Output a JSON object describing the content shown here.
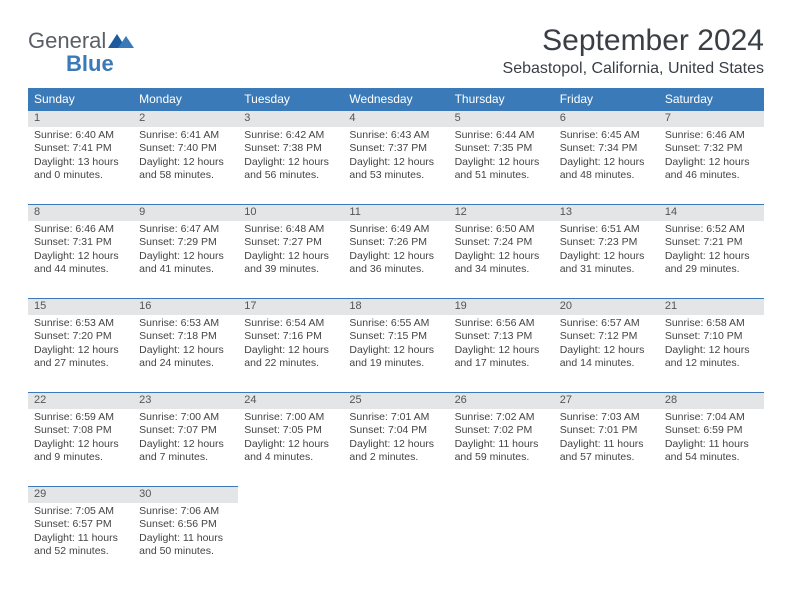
{
  "logo": {
    "text1": "General",
    "text2": "Blue"
  },
  "title": "September 2024",
  "location": "Sebastopol, California, United States",
  "header_bg": "#3b7ab8",
  "daynum_bg": "#e3e5e7",
  "weekdays": [
    "Sunday",
    "Monday",
    "Tuesday",
    "Wednesday",
    "Thursday",
    "Friday",
    "Saturday"
  ],
  "weeks": [
    [
      {
        "n": "1",
        "sr": "Sunrise: 6:40 AM",
        "ss": "Sunset: 7:41 PM",
        "dl": "Daylight: 13 hours and 0 minutes."
      },
      {
        "n": "2",
        "sr": "Sunrise: 6:41 AM",
        "ss": "Sunset: 7:40 PM",
        "dl": "Daylight: 12 hours and 58 minutes."
      },
      {
        "n": "3",
        "sr": "Sunrise: 6:42 AM",
        "ss": "Sunset: 7:38 PM",
        "dl": "Daylight: 12 hours and 56 minutes."
      },
      {
        "n": "4",
        "sr": "Sunrise: 6:43 AM",
        "ss": "Sunset: 7:37 PM",
        "dl": "Daylight: 12 hours and 53 minutes."
      },
      {
        "n": "5",
        "sr": "Sunrise: 6:44 AM",
        "ss": "Sunset: 7:35 PM",
        "dl": "Daylight: 12 hours and 51 minutes."
      },
      {
        "n": "6",
        "sr": "Sunrise: 6:45 AM",
        "ss": "Sunset: 7:34 PM",
        "dl": "Daylight: 12 hours and 48 minutes."
      },
      {
        "n": "7",
        "sr": "Sunrise: 6:46 AM",
        "ss": "Sunset: 7:32 PM",
        "dl": "Daylight: 12 hours and 46 minutes."
      }
    ],
    [
      {
        "n": "8",
        "sr": "Sunrise: 6:46 AM",
        "ss": "Sunset: 7:31 PM",
        "dl": "Daylight: 12 hours and 44 minutes."
      },
      {
        "n": "9",
        "sr": "Sunrise: 6:47 AM",
        "ss": "Sunset: 7:29 PM",
        "dl": "Daylight: 12 hours and 41 minutes."
      },
      {
        "n": "10",
        "sr": "Sunrise: 6:48 AM",
        "ss": "Sunset: 7:27 PM",
        "dl": "Daylight: 12 hours and 39 minutes."
      },
      {
        "n": "11",
        "sr": "Sunrise: 6:49 AM",
        "ss": "Sunset: 7:26 PM",
        "dl": "Daylight: 12 hours and 36 minutes."
      },
      {
        "n": "12",
        "sr": "Sunrise: 6:50 AM",
        "ss": "Sunset: 7:24 PM",
        "dl": "Daylight: 12 hours and 34 minutes."
      },
      {
        "n": "13",
        "sr": "Sunrise: 6:51 AM",
        "ss": "Sunset: 7:23 PM",
        "dl": "Daylight: 12 hours and 31 minutes."
      },
      {
        "n": "14",
        "sr": "Sunrise: 6:52 AM",
        "ss": "Sunset: 7:21 PM",
        "dl": "Daylight: 12 hours and 29 minutes."
      }
    ],
    [
      {
        "n": "15",
        "sr": "Sunrise: 6:53 AM",
        "ss": "Sunset: 7:20 PM",
        "dl": "Daylight: 12 hours and 27 minutes."
      },
      {
        "n": "16",
        "sr": "Sunrise: 6:53 AM",
        "ss": "Sunset: 7:18 PM",
        "dl": "Daylight: 12 hours and 24 minutes."
      },
      {
        "n": "17",
        "sr": "Sunrise: 6:54 AM",
        "ss": "Sunset: 7:16 PM",
        "dl": "Daylight: 12 hours and 22 minutes."
      },
      {
        "n": "18",
        "sr": "Sunrise: 6:55 AM",
        "ss": "Sunset: 7:15 PM",
        "dl": "Daylight: 12 hours and 19 minutes."
      },
      {
        "n": "19",
        "sr": "Sunrise: 6:56 AM",
        "ss": "Sunset: 7:13 PM",
        "dl": "Daylight: 12 hours and 17 minutes."
      },
      {
        "n": "20",
        "sr": "Sunrise: 6:57 AM",
        "ss": "Sunset: 7:12 PM",
        "dl": "Daylight: 12 hours and 14 minutes."
      },
      {
        "n": "21",
        "sr": "Sunrise: 6:58 AM",
        "ss": "Sunset: 7:10 PM",
        "dl": "Daylight: 12 hours and 12 minutes."
      }
    ],
    [
      {
        "n": "22",
        "sr": "Sunrise: 6:59 AM",
        "ss": "Sunset: 7:08 PM",
        "dl": "Daylight: 12 hours and 9 minutes."
      },
      {
        "n": "23",
        "sr": "Sunrise: 7:00 AM",
        "ss": "Sunset: 7:07 PM",
        "dl": "Daylight: 12 hours and 7 minutes."
      },
      {
        "n": "24",
        "sr": "Sunrise: 7:00 AM",
        "ss": "Sunset: 7:05 PM",
        "dl": "Daylight: 12 hours and 4 minutes."
      },
      {
        "n": "25",
        "sr": "Sunrise: 7:01 AM",
        "ss": "Sunset: 7:04 PM",
        "dl": "Daylight: 12 hours and 2 minutes."
      },
      {
        "n": "26",
        "sr": "Sunrise: 7:02 AM",
        "ss": "Sunset: 7:02 PM",
        "dl": "Daylight: 11 hours and 59 minutes."
      },
      {
        "n": "27",
        "sr": "Sunrise: 7:03 AM",
        "ss": "Sunset: 7:01 PM",
        "dl": "Daylight: 11 hours and 57 minutes."
      },
      {
        "n": "28",
        "sr": "Sunrise: 7:04 AM",
        "ss": "Sunset: 6:59 PM",
        "dl": "Daylight: 11 hours and 54 minutes."
      }
    ],
    [
      {
        "n": "29",
        "sr": "Sunrise: 7:05 AM",
        "ss": "Sunset: 6:57 PM",
        "dl": "Daylight: 11 hours and 52 minutes."
      },
      {
        "n": "30",
        "sr": "Sunrise: 7:06 AM",
        "ss": "Sunset: 6:56 PM",
        "dl": "Daylight: 11 hours and 50 minutes."
      },
      null,
      null,
      null,
      null,
      null
    ]
  ]
}
